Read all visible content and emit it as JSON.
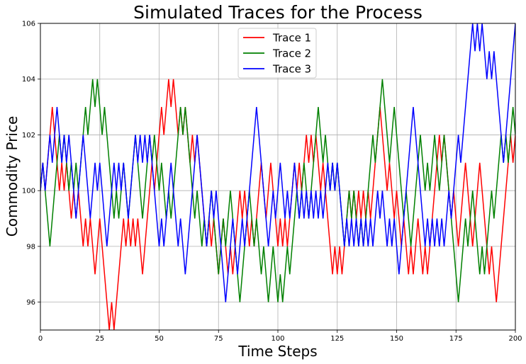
{
  "chart_data": {
    "type": "line",
    "title": "Simulated Traces for the Process",
    "xlabel": "Time Steps",
    "ylabel": "Commodity Price",
    "xlim": [
      0,
      200
    ],
    "ylim": [
      95,
      106
    ],
    "xticks": [
      0,
      25,
      50,
      75,
      100,
      125,
      150,
      175,
      200
    ],
    "yticks": [
      96,
      98,
      100,
      102,
      104,
      106
    ],
    "grid": true,
    "legend_position": "top-center",
    "series": [
      {
        "name": "Trace 1",
        "color": "#ff0000",
        "values": [
          100,
          101,
          100,
          101,
          102,
          103,
          102,
          101,
          100,
          101,
          100,
          101,
          100,
          99,
          100,
          99,
          100,
          99,
          98,
          99,
          98,
          99,
          98,
          97,
          98,
          99,
          98,
          97,
          96,
          95,
          96,
          95,
          96,
          97,
          98,
          99,
          98,
          99,
          98,
          99,
          98,
          99,
          98,
          97,
          98,
          99,
          100,
          101,
          100,
          101,
          102,
          103,
          102,
          103,
          104,
          103,
          104,
          103,
          102,
          103,
          102,
          103,
          102,
          101,
          102,
          101,
          102,
          101,
          100,
          99,
          98,
          99,
          98,
          99,
          98,
          97,
          98,
          99,
          98,
          97,
          98,
          97,
          98,
          99,
          100,
          99,
          100,
          99,
          98,
          99,
          98,
          99,
          100,
          101,
          100,
          99,
          100,
          101,
          100,
          99,
          98,
          99,
          98,
          99,
          98,
          99,
          100,
          101,
          100,
          101,
          100,
          101,
          102,
          101,
          102,
          101,
          102,
          101,
          100,
          101,
          100,
          99,
          98,
          97,
          98,
          97,
          98,
          97,
          98,
          99,
          100,
          99,
          100,
          99,
          100,
          99,
          100,
          99,
          100,
          99,
          100,
          101,
          102,
          103,
          102,
          101,
          100,
          101,
          100,
          99,
          100,
          99,
          98,
          99,
          98,
          97,
          98,
          97,
          98,
          99,
          98,
          97,
          98,
          97,
          98,
          99,
          100,
          101,
          102,
          101,
          102,
          101,
          100,
          99,
          100,
          99,
          98,
          99,
          100,
          101,
          100,
          99,
          98,
          99,
          100,
          101,
          100,
          99,
          98,
          97,
          98,
          97,
          96,
          97,
          98,
          99,
          100,
          101,
          102,
          101,
          102
        ]
      },
      {
        "name": "Trace 2",
        "color": "#008000",
        "values": [
          100,
          101,
          100,
          99,
          98,
          99,
          100,
          101,
          102,
          101,
          102,
          101,
          100,
          101,
          100,
          101,
          100,
          101,
          102,
          103,
          102,
          103,
          104,
          103,
          104,
          103,
          102,
          103,
          102,
          101,
          100,
          99,
          100,
          99,
          100,
          101,
          100,
          99,
          100,
          101,
          102,
          101,
          100,
          99,
          100,
          101,
          102,
          101,
          102,
          101,
          100,
          101,
          100,
          99,
          100,
          99,
          100,
          101,
          102,
          103,
          102,
          103,
          102,
          101,
          100,
          99,
          100,
          99,
          98,
          99,
          98,
          99,
          100,
          99,
          98,
          97,
          98,
          99,
          98,
          99,
          100,
          99,
          98,
          97,
          96,
          97,
          98,
          99,
          100,
          99,
          98,
          99,
          98,
          97,
          98,
          97,
          96,
          97,
          98,
          97,
          96,
          97,
          96,
          97,
          98,
          97,
          98,
          99,
          100,
          99,
          100,
          101,
          100,
          99,
          100,
          101,
          102,
          103,
          102,
          101,
          102,
          101,
          100,
          101,
          100,
          101,
          100,
          99,
          98,
          99,
          100,
          99,
          100,
          99,
          98,
          99,
          98,
          99,
          100,
          101,
          102,
          101,
          102,
          103,
          104,
          103,
          102,
          101,
          102,
          103,
          102,
          101,
          100,
          99,
          100,
          99,
          98,
          99,
          100,
          101,
          102,
          101,
          100,
          101,
          100,
          101,
          102,
          101,
          100,
          101,
          102,
          101,
          100,
          99,
          98,
          97,
          96,
          97,
          98,
          99,
          98,
          99,
          100,
          99,
          98,
          97,
          98,
          97,
          98,
          99,
          100,
          99,
          100,
          101,
          102,
          101,
          102,
          101,
          102,
          103,
          102
        ]
      },
      {
        "name": "Trace 3",
        "color": "#0000ff",
        "values": [
          100,
          101,
          100,
          101,
          102,
          101,
          102,
          103,
          102,
          101,
          102,
          101,
          102,
          101,
          100,
          99,
          100,
          101,
          102,
          101,
          100,
          99,
          100,
          101,
          100,
          101,
          100,
          99,
          98,
          99,
          100,
          101,
          100,
          101,
          100,
          101,
          100,
          99,
          100,
          101,
          102,
          101,
          102,
          101,
          102,
          101,
          102,
          101,
          100,
          99,
          98,
          99,
          98,
          99,
          100,
          101,
          100,
          99,
          98,
          99,
          98,
          97,
          98,
          99,
          100,
          101,
          102,
          101,
          100,
          99,
          98,
          99,
          100,
          99,
          100,
          99,
          98,
          97,
          96,
          97,
          98,
          99,
          98,
          97,
          98,
          99,
          98,
          99,
          100,
          101,
          102,
          103,
          102,
          101,
          100,
          99,
          98,
          99,
          100,
          99,
          100,
          101,
          100,
          99,
          100,
          99,
          100,
          101,
          100,
          99,
          100,
          99,
          100,
          99,
          100,
          99,
          100,
          99,
          100,
          99,
          100,
          101,
          100,
          101,
          100,
          101,
          100,
          99,
          98,
          99,
          98,
          99,
          98,
          99,
          98,
          99,
          98,
          99,
          98,
          99,
          98,
          99,
          100,
          99,
          100,
          99,
          98,
          99,
          98,
          99,
          98,
          97,
          98,
          99,
          100,
          101,
          102,
          103,
          102,
          101,
          100,
          99,
          98,
          99,
          98,
          99,
          98,
          99,
          98,
          99,
          98,
          99,
          100,
          99,
          100,
          101,
          102,
          101,
          102,
          103,
          104,
          105,
          106,
          105,
          106,
          105,
          106,
          105,
          104,
          105,
          104,
          105,
          104,
          103,
          102,
          101,
          102,
          103,
          104,
          105,
          106
        ]
      }
    ]
  }
}
